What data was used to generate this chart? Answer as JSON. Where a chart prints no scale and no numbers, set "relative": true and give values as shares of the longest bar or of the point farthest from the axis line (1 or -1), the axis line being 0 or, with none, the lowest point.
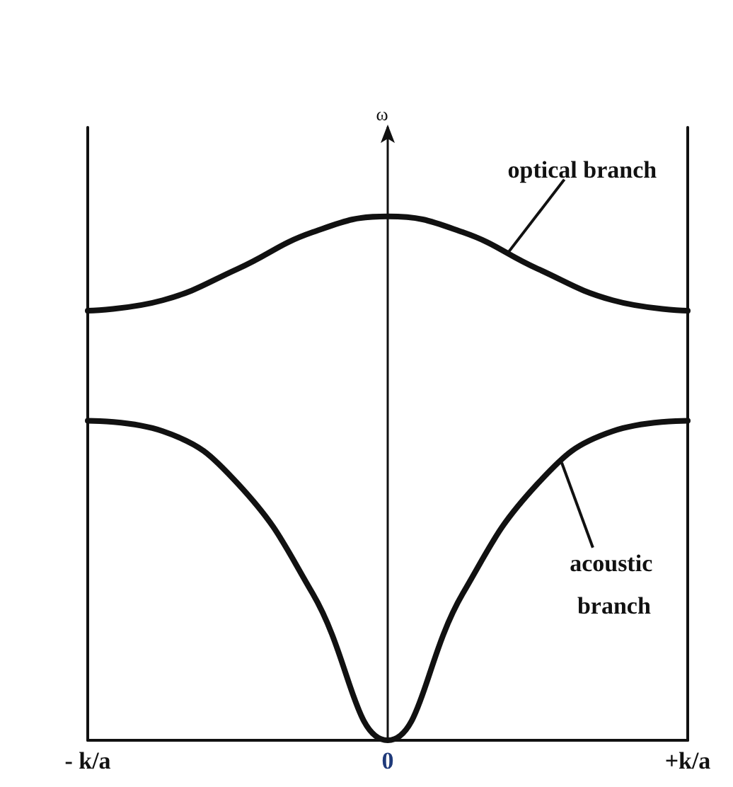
{
  "chart_data": {
    "type": "line",
    "relative": true,
    "marker": "none",
    "line_style": "solid",
    "categories": [
      "- k/a",
      null,
      null,
      null,
      "0",
      null,
      null,
      null,
      "+k/a"
    ],
    "series": [
      {
        "color": "#111111",
        "values": [
          0.82,
          0.84,
          0.9,
          0.97,
          1,
          0.97,
          0.9,
          0.84,
          0.82
        ]
      },
      {
        "color": "#111111",
        "values": [
          0.61,
          0.59,
          0.49,
          0.28,
          0,
          0.28,
          0.49,
          0.59,
          0.61
        ]
      }
    ],
    "annotations": [
      "ω",
      "optical branch",
      "acoustic branch"
    ]
  }
}
